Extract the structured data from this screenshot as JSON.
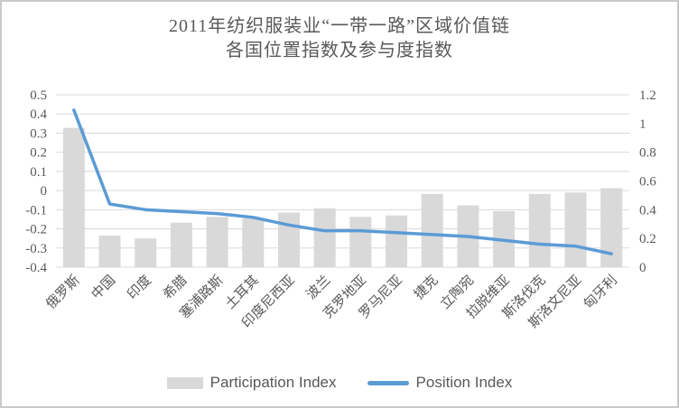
{
  "title": {
    "line1": "2011年纺织服装业“一带一路”区域价值链",
    "line2": "各国位置指数及参与度指数"
  },
  "legend": {
    "participation_label": "Participation Index",
    "position_label": "Position Index"
  },
  "colors": {
    "bar": "#d9d9d9",
    "line": "#5b9bd5",
    "grid": "#d9d9d9",
    "text": "#595959",
    "border": "#c9c9c9"
  },
  "chart_data": {
    "type": "bar",
    "subtype": "combo bar+line, dual axis",
    "title": "2011年纺织服装业“一带一路”区域价值链 各国位置指数及参与度指数",
    "categories": [
      "俄罗斯",
      "中国",
      "印度",
      "希腊",
      "塞浦路斯",
      "土耳其",
      "印度尼西亚",
      "波兰",
      "克罗地亚",
      "罗马尼亚",
      "捷克",
      "立陶宛",
      "拉脱维亚",
      "斯洛伐克",
      "斯洛文尼亚",
      "匈牙利"
    ],
    "series": [
      {
        "name": "Participation Index",
        "type": "bar",
        "axis": "right",
        "values": [
          0.97,
          0.22,
          0.2,
          0.31,
          0.35,
          0.34,
          0.38,
          0.41,
          0.35,
          0.36,
          0.51,
          0.43,
          0.39,
          0.51,
          0.52,
          0.55
        ]
      },
      {
        "name": "Position Index",
        "type": "line",
        "axis": "left",
        "values": [
          0.42,
          -0.07,
          -0.1,
          -0.11,
          -0.12,
          -0.14,
          -0.18,
          -0.21,
          -0.21,
          -0.22,
          -0.23,
          -0.24,
          -0.26,
          -0.28,
          -0.29,
          -0.33
        ]
      }
    ],
    "left_axis": {
      "min": -0.4,
      "max": 0.5,
      "step": 0.1,
      "ticks": [
        "0.5",
        "0.4",
        "0.3",
        "0.2",
        "0.1",
        "0",
        "-0.1",
        "-0.2",
        "-0.3",
        "-0.4"
      ]
    },
    "right_axis": {
      "min": 0,
      "max": 1.2,
      "step": 0.2,
      "ticks": [
        "1.2",
        "1",
        "0.8",
        "0.6",
        "0.4",
        "0.2",
        "0"
      ]
    },
    "grid": true,
    "legend_position": "bottom",
    "category_label_rotation": -45
  }
}
